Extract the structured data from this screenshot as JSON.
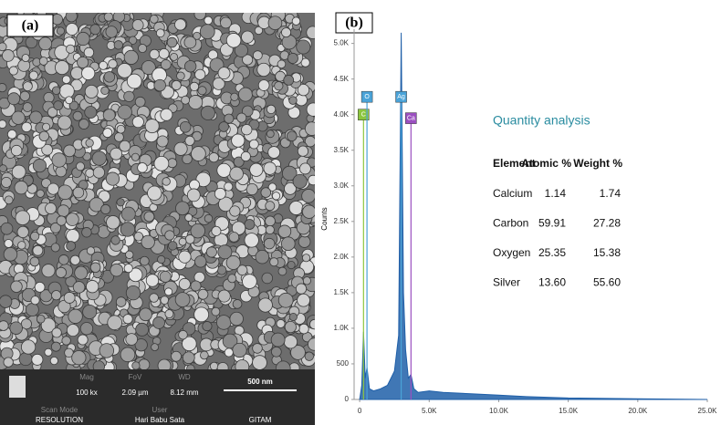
{
  "panel_a": {
    "label": "(a)",
    "info": {
      "mag_label": "Mag",
      "mag": "100 kx",
      "fov_label": "FoV",
      "fov": "2.09 µm",
      "wd_label": "WD",
      "wd": "8.12 mm",
      "scale": "500 nm",
      "scan_label": "Scan Mode",
      "scan": "RESOLUTION",
      "user_label": "User",
      "user": "Hari Babu Sata",
      "site": "GITAM"
    }
  },
  "chart_data": {
    "type": "area",
    "panel_label": "(b)",
    "title": "Quantity analysis",
    "y_label": "Counts",
    "color": "#1f5fa8",
    "x": [
      0,
      150,
      277,
      400,
      525,
      700,
      1000,
      1500,
      2000,
      2500,
      2800,
      2984,
      3150,
      3300,
      3500,
      3690,
      3900,
      4200,
      5000,
      6000,
      8000,
      10000,
      12000,
      15000,
      20000,
      25000
    ],
    "values": [
      0,
      200,
      950,
      300,
      450,
      150,
      120,
      150,
      200,
      400,
      900,
      5150,
      1500,
      700,
      300,
      350,
      150,
      100,
      120,
      100,
      80,
      60,
      40,
      20,
      10,
      0
    ],
    "xlim": [
      -400,
      25000
    ],
    "ylim": [
      0,
      5200
    ],
    "xticks": [
      0,
      {
        "value": 5000,
        "label": "5.0K"
      },
      {
        "value": 10000,
        "label": "10.0K"
      },
      {
        "value": 15000,
        "label": "15.0K"
      },
      {
        "value": 20000,
        "label": "20.0K"
      },
      {
        "value": 25000,
        "label": "25.0K"
      }
    ],
    "yticks": [
      0,
      500,
      {
        "value": 1000,
        "label": "1.0K"
      },
      {
        "value": 1500,
        "label": "1.5K"
      },
      {
        "value": 2000,
        "label": "2.0K"
      },
      {
        "value": 2500,
        "label": "2.5K"
      },
      {
        "value": 3000,
        "label": "3.0K"
      },
      {
        "value": 3500,
        "label": "3.5K"
      },
      {
        "value": 4000,
        "label": "4.0K"
      },
      {
        "value": 4500,
        "label": "4.5K"
      },
      {
        "value": 5000,
        "label": "5.0K"
      }
    ],
    "markers": [
      {
        "label": "C",
        "x": 277,
        "top": 4000,
        "color": "#8cc63f"
      },
      {
        "label": "O",
        "x": 525,
        "top": 4250,
        "color": "#4aa3d8"
      },
      {
        "label": "Ag",
        "x": 2984,
        "top": 4250,
        "color": "#4aa3d8"
      },
      {
        "label": "Ca",
        "x": 3690,
        "top": 3950,
        "color": "#9b4fc0"
      }
    ],
    "table": {
      "header": [
        "Element",
        "Atomic %",
        "Weight %"
      ],
      "rows": [
        [
          "Calcium",
          "1.14",
          "1.74"
        ],
        [
          "Carbon",
          "59.91",
          "27.28"
        ],
        [
          "Oxygen",
          "25.35",
          "15.38"
        ],
        [
          "Silver",
          "13.60",
          "55.60"
        ]
      ]
    }
  }
}
